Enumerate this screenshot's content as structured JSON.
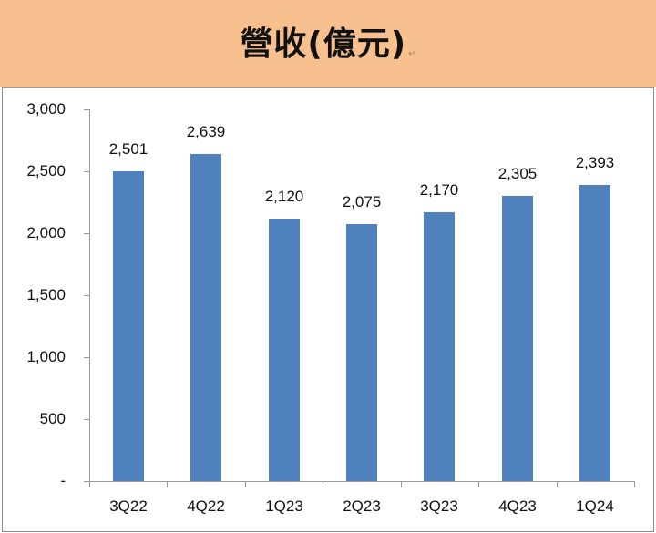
{
  "title": "營收(億元)",
  "colors": {
    "title_band": "#f9c08f",
    "bar": "#4f81bd",
    "axis": "#9a9a9a"
  },
  "chart_data": {
    "type": "bar",
    "title": "營收(億元)",
    "xlabel": "",
    "ylabel": "",
    "categories": [
      "3Q22",
      "4Q22",
      "1Q23",
      "2Q23",
      "3Q23",
      "4Q23",
      "1Q24"
    ],
    "values": [
      2501,
      2639,
      2120,
      2075,
      2170,
      2305,
      2393
    ],
    "value_labels": [
      "2,501",
      "2,639",
      "2,120",
      "2,075",
      "2,170",
      "2,305",
      "2,393"
    ],
    "ylim": [
      0,
      3000
    ],
    "yticks": [
      0,
      500,
      1000,
      1500,
      2000,
      2500,
      3000
    ],
    "ytick_labels": [
      "-",
      "500",
      "1,000",
      "1,500",
      "2,000",
      "2,500",
      "3,000"
    ],
    "grid": false,
    "legend": "none",
    "series": [
      {
        "name": "營收(億元)",
        "values": [
          2501,
          2639,
          2120,
          2075,
          2170,
          2305,
          2393
        ]
      }
    ]
  }
}
